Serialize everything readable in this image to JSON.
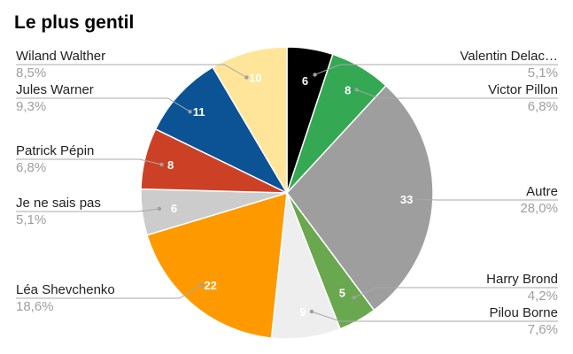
{
  "chart_data": {
    "type": "pie",
    "title": "Le plus gentil",
    "slices": [
      {
        "label": "Valentin Delac…",
        "value": 6,
        "percent": "5,1%",
        "color": "#000000",
        "text_color": "#ffffff"
      },
      {
        "label": "Victor Pillon",
        "value": 8,
        "percent": "6,8%",
        "color": "#34a853",
        "text_color": "#ffffff"
      },
      {
        "label": "Autre",
        "value": 33,
        "percent": "28,0%",
        "color": "#9e9e9e",
        "text_color": "#ffffff"
      },
      {
        "label": "Harry Brond",
        "value": 5,
        "percent": "4,2%",
        "color": "#6aa84f",
        "text_color": "#ffffff"
      },
      {
        "label": "Pilou Borne",
        "value": 9,
        "percent": "7,6%",
        "color": "#eeeeee",
        "text_color": "#ffffff"
      },
      {
        "label": "Léa Shevchenko",
        "value": 22,
        "percent": "18,6%",
        "color": "#ff9900",
        "text_color": "#ffffff"
      },
      {
        "label": "Je ne sais pas",
        "value": 6,
        "percent": "5,1%",
        "color": "#cccccc",
        "text_color": "#ffffff"
      },
      {
        "label": "Patrick Pépin",
        "value": 8,
        "percent": "6,8%",
        "color": "#cc4125",
        "text_color": "#ffffff"
      },
      {
        "label": "Jules Warner",
        "value": 11,
        "percent": "9,3%",
        "color": "#0b5394",
        "text_color": "#ffffff"
      },
      {
        "label": "Wiland Walther",
        "value": 10,
        "percent": "8,5%",
        "color": "#ffe599",
        "text_color": "#ffffff"
      }
    ],
    "legend": "none"
  }
}
